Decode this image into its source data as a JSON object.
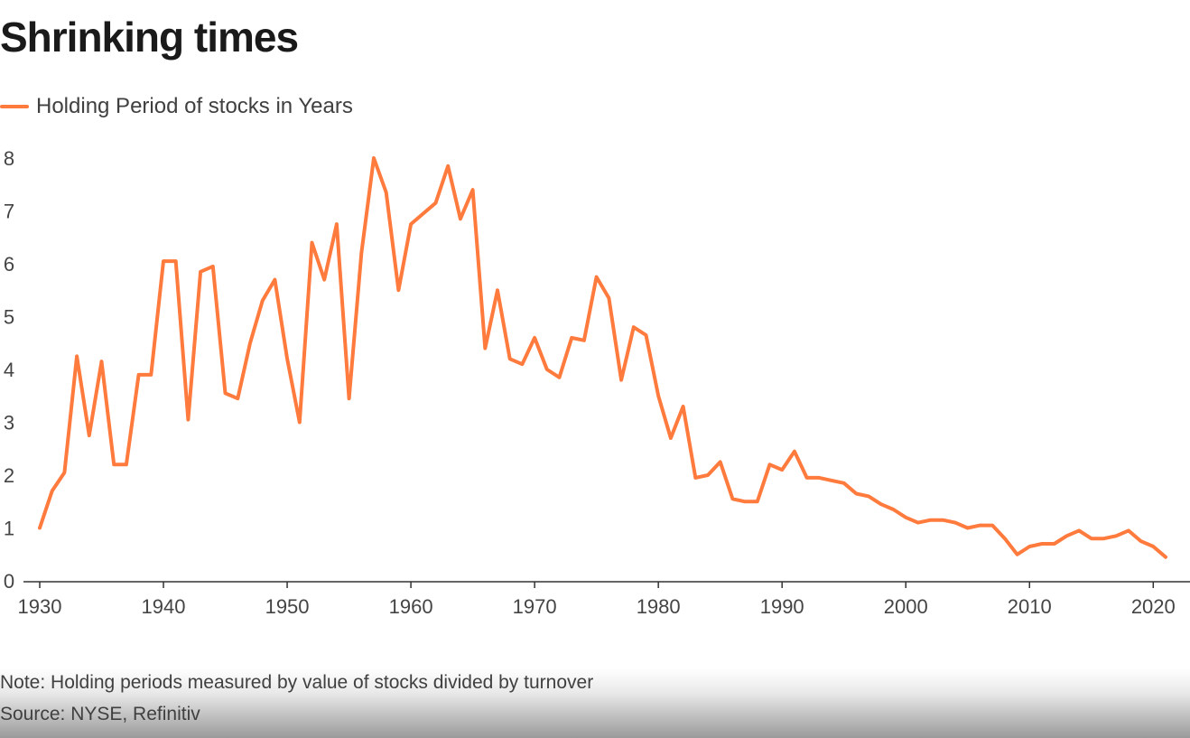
{
  "title": "Shrinking times",
  "legend": {
    "label": "Holding Period of stocks in Years",
    "color": "#ff7a3d"
  },
  "footer": {
    "note": "Note: Holding periods measured by value of stocks divided by turnover",
    "source": "Source: NYSE, Refinitiv"
  },
  "chart_data": {
    "type": "line",
    "title": "Shrinking times",
    "xlabel": "",
    "ylabel": "",
    "xlim": [
      1930,
      2021
    ],
    "ylim": [
      0,
      8
    ],
    "x_ticks": [
      1930,
      1940,
      1950,
      1960,
      1970,
      1980,
      1990,
      2000,
      2010,
      2020
    ],
    "y_ticks": [
      0,
      1,
      2,
      3,
      4,
      5,
      6,
      7,
      8
    ],
    "grid": false,
    "legend_position": "top-left",
    "series": [
      {
        "name": "Holding Period of stocks in Years",
        "color": "#ff7a3d",
        "x": [
          1930,
          1931,
          1932,
          1933,
          1934,
          1935,
          1936,
          1937,
          1938,
          1939,
          1940,
          1941,
          1942,
          1943,
          1944,
          1945,
          1946,
          1947,
          1948,
          1949,
          1950,
          1951,
          1952,
          1953,
          1954,
          1955,
          1956,
          1957,
          1958,
          1959,
          1960,
          1961,
          1962,
          1963,
          1964,
          1965,
          1966,
          1967,
          1968,
          1969,
          1970,
          1971,
          1972,
          1973,
          1974,
          1975,
          1976,
          1977,
          1978,
          1979,
          1980,
          1981,
          1982,
          1983,
          1984,
          1985,
          1986,
          1987,
          1988,
          1989,
          1990,
          1991,
          1992,
          1993,
          1994,
          1995,
          1996,
          1997,
          1998,
          1999,
          2000,
          2001,
          2002,
          2003,
          2004,
          2005,
          2006,
          2007,
          2008,
          2009,
          2010,
          2011,
          2012,
          2013,
          2014,
          2015,
          2016,
          2017,
          2018,
          2019,
          2020,
          2021
        ],
        "y": [
          1.0,
          1.7,
          2.05,
          4.25,
          2.75,
          4.15,
          2.2,
          2.2,
          3.9,
          3.9,
          6.05,
          6.05,
          3.05,
          5.85,
          5.95,
          3.55,
          3.45,
          4.5,
          5.3,
          5.7,
          4.2,
          3.0,
          6.4,
          5.7,
          6.75,
          3.45,
          6.2,
          8.0,
          7.35,
          5.5,
          6.75,
          6.95,
          7.15,
          7.85,
          6.85,
          7.4,
          4.4,
          5.5,
          4.2,
          4.1,
          4.6,
          4.0,
          3.85,
          4.6,
          4.55,
          5.75,
          5.35,
          3.8,
          4.8,
          4.65,
          3.5,
          2.7,
          3.3,
          1.95,
          2.0,
          2.25,
          1.55,
          1.5,
          1.5,
          2.2,
          2.1,
          2.45,
          1.95,
          1.95,
          1.9,
          1.85,
          1.65,
          1.6,
          1.45,
          1.35,
          1.2,
          1.1,
          1.15,
          1.15,
          1.1,
          1.0,
          1.05,
          1.05,
          0.8,
          0.5,
          0.65,
          0.7,
          0.7,
          0.85,
          0.95,
          0.8,
          0.8,
          0.85,
          0.95,
          0.75,
          0.65,
          0.45
        ]
      }
    ]
  }
}
